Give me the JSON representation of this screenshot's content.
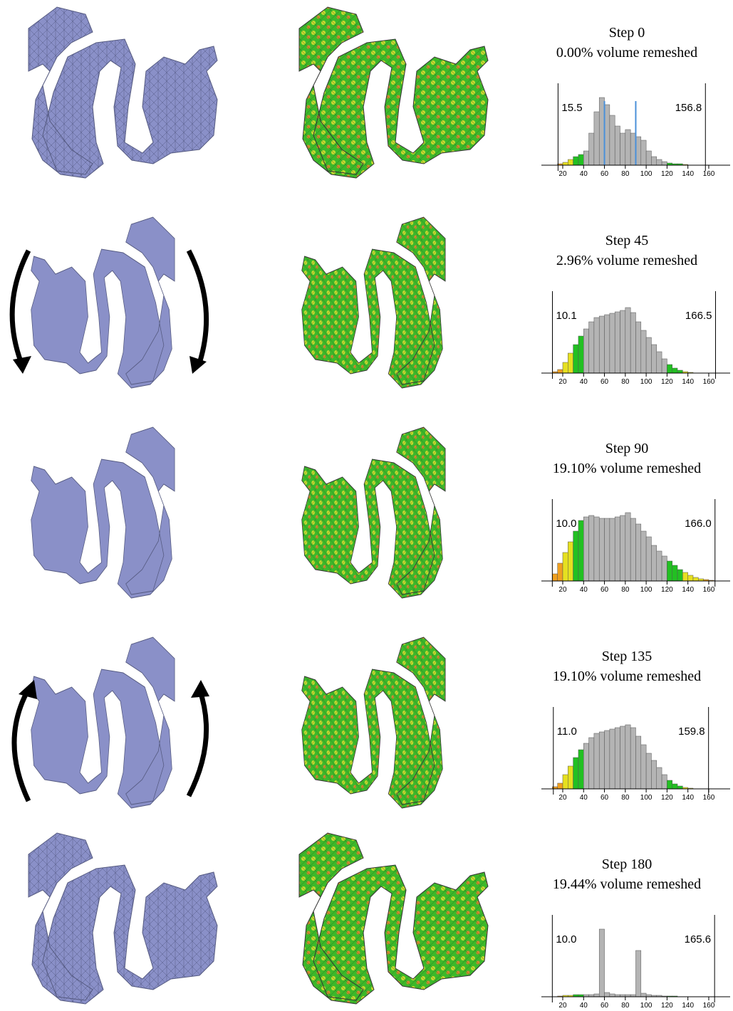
{
  "color_bands": [
    {
      "max": 20,
      "color": "#f0a020"
    },
    {
      "max": 30,
      "color": "#e6e020"
    },
    {
      "max": 40,
      "color": "#22c022"
    },
    {
      "max": 120,
      "color": "#b4b4b4"
    },
    {
      "max": 135,
      "color": "#22c022"
    },
    {
      "max": 155,
      "color": "#e6e020"
    },
    {
      "max": 170,
      "color": "#f0a020"
    }
  ],
  "chart_data": [
    {
      "type": "histogram",
      "title": "Step 0",
      "subtitle": "0.00% volume remeshed",
      "bins": [
        0,
        5,
        10,
        15,
        20,
        25,
        30,
        35,
        40,
        45,
        50,
        55,
        60,
        65,
        70,
        75,
        80,
        85,
        90,
        95,
        100,
        105,
        110,
        115,
        120,
        125,
        130,
        135,
        140,
        145,
        150,
        155,
        160,
        165,
        170
      ],
      "values": [
        0,
        0,
        0,
        2,
        4,
        8,
        12,
        15,
        20,
        45,
        75,
        95,
        85,
        70,
        55,
        45,
        50,
        45,
        40,
        35,
        20,
        12,
        8,
        5,
        3,
        2,
        2,
        1,
        0,
        0,
        0,
        0,
        0,
        0
      ],
      "xlim": [
        0,
        170
      ],
      "ylim": [
        0,
        100
      ],
      "xticks": [
        20,
        40,
        60,
        80,
        100,
        120,
        140,
        160
      ],
      "min_angle": 15.5,
      "max_angle": 156.8,
      "highlight_lines": [
        60,
        90
      ],
      "highlight_color": "#4a90d9"
    },
    {
      "type": "histogram",
      "title": "Step 45",
      "subtitle": "2.96% volume remeshed",
      "bins": [
        0,
        5,
        10,
        15,
        20,
        25,
        30,
        35,
        40,
        45,
        50,
        55,
        60,
        65,
        70,
        75,
        80,
        85,
        90,
        95,
        100,
        105,
        110,
        115,
        120,
        125,
        130,
        135,
        140,
        145,
        150,
        155,
        160,
        165,
        170
      ],
      "values": [
        0,
        0,
        2,
        5,
        15,
        28,
        40,
        52,
        62,
        72,
        78,
        80,
        82,
        84,
        86,
        88,
        92,
        85,
        72,
        60,
        50,
        40,
        30,
        20,
        12,
        7,
        4,
        2,
        1,
        0,
        0,
        0,
        0,
        0
      ],
      "xlim": [
        0,
        170
      ],
      "ylim": [
        0,
        100
      ],
      "xticks": [
        20,
        40,
        60,
        80,
        100,
        120,
        140,
        160
      ],
      "min_angle": 10.1,
      "max_angle": 166.5
    },
    {
      "type": "histogram",
      "title": "Step 90",
      "subtitle": "19.10% volume remeshed",
      "bins": [
        0,
        5,
        10,
        15,
        20,
        25,
        30,
        35,
        40,
        45,
        50,
        55,
        60,
        65,
        70,
        75,
        80,
        85,
        90,
        95,
        100,
        105,
        110,
        115,
        120,
        125,
        130,
        135,
        140,
        145,
        150,
        155,
        160,
        165,
        170
      ],
      "values": [
        0,
        0,
        10,
        25,
        40,
        55,
        70,
        85,
        90,
        92,
        90,
        88,
        88,
        88,
        90,
        92,
        96,
        88,
        80,
        70,
        62,
        50,
        42,
        35,
        28,
        22,
        16,
        12,
        8,
        5,
        3,
        2,
        1,
        0
      ],
      "xlim": [
        0,
        170
      ],
      "ylim": [
        0,
        100
      ],
      "xticks": [
        20,
        40,
        60,
        80,
        100,
        120,
        140,
        160
      ],
      "min_angle": {
        "value": 10,
        "label": "10.0"
      },
      "max_angle": {
        "value": 166,
        "label": "166.0"
      }
    },
    {
      "type": "histogram",
      "title": "Step 135",
      "subtitle": "19.10% volume remeshed",
      "bins": [
        0,
        5,
        10,
        15,
        20,
        25,
        30,
        35,
        40,
        45,
        50,
        55,
        60,
        65,
        70,
        75,
        80,
        85,
        90,
        95,
        100,
        105,
        110,
        115,
        120,
        125,
        130,
        135,
        140,
        145,
        150,
        155,
        160,
        165,
        170
      ],
      "values": [
        0,
        0,
        3,
        8,
        20,
        32,
        44,
        55,
        64,
        72,
        78,
        80,
        82,
        84,
        86,
        88,
        90,
        86,
        74,
        62,
        50,
        40,
        30,
        20,
        12,
        7,
        4,
        2,
        1,
        0,
        0,
        0,
        0,
        0
      ],
      "xlim": [
        0,
        170
      ],
      "ylim": [
        0,
        100
      ],
      "xticks": [
        20,
        40,
        60,
        80,
        100,
        120,
        140,
        160
      ],
      "min_angle": {
        "value": 11,
        "label": "11.0"
      },
      "max_angle": 159.8
    },
    {
      "type": "histogram",
      "title": "Step 180",
      "subtitle": "19.44% volume remeshed",
      "bins": [
        0,
        5,
        10,
        15,
        20,
        25,
        30,
        35,
        40,
        45,
        50,
        55,
        60,
        65,
        70,
        75,
        80,
        85,
        90,
        95,
        100,
        105,
        110,
        115,
        120,
        125,
        130,
        135,
        140,
        145,
        150,
        155,
        160,
        165,
        170
      ],
      "values": [
        0,
        0,
        0,
        1,
        2,
        2,
        3,
        3,
        3,
        3,
        4,
        95,
        6,
        4,
        3,
        3,
        3,
        3,
        65,
        5,
        3,
        2,
        2,
        1,
        1,
        1,
        0,
        0,
        0,
        0,
        0,
        0,
        0,
        0
      ],
      "xlim": [
        0,
        170
      ],
      "ylim": [
        0,
        100
      ],
      "xticks": [
        20,
        40,
        60,
        80,
        100,
        120,
        140,
        160
      ],
      "min_angle": {
        "value": 10,
        "label": "10.0"
      },
      "max_angle": 165.6
    }
  ]
}
